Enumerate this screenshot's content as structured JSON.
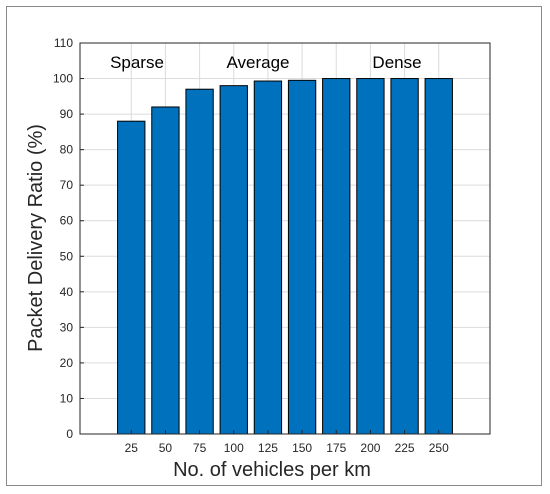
{
  "chart_data": {
    "type": "bar",
    "categories": [
      "25",
      "50",
      "75",
      "100",
      "125",
      "150",
      "175",
      "200",
      "225",
      "250"
    ],
    "values": [
      88,
      92,
      97,
      98,
      99.3,
      99.5,
      100,
      100,
      100,
      100
    ],
    "title": "",
    "xlabel": "No. of vehicles per km",
    "ylabel": "Packet Delivery Ratio (%)",
    "ylim": [
      0,
      110
    ],
    "yticks": [
      0,
      10,
      20,
      30,
      40,
      50,
      60,
      70,
      80,
      90,
      100,
      110
    ],
    "grid": true,
    "bar_color": "#0072bd",
    "annotations": [
      "Sparse",
      "Average",
      "Dense"
    ]
  }
}
